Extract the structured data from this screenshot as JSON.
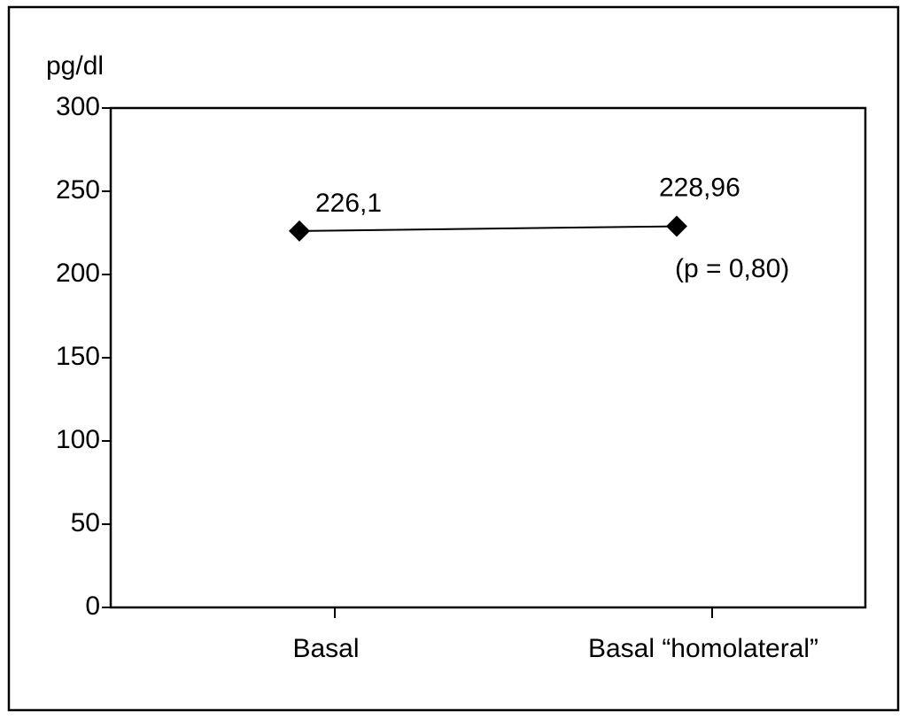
{
  "chart_data": {
    "type": "line",
    "y_label": "pg/dl",
    "categories": [
      "Basal",
      "Basal “homolateral”"
    ],
    "series": [
      {
        "name": null,
        "color": "#000000",
        "values": [
          226.1,
          228.96
        ],
        "value_labels": [
          "226,1",
          "228,96"
        ]
      }
    ],
    "annotation": "(p = 0,80)",
    "ylim": [
      0,
      300
    ],
    "yticks": [
      0,
      50,
      100,
      150,
      200,
      250,
      300
    ]
  }
}
